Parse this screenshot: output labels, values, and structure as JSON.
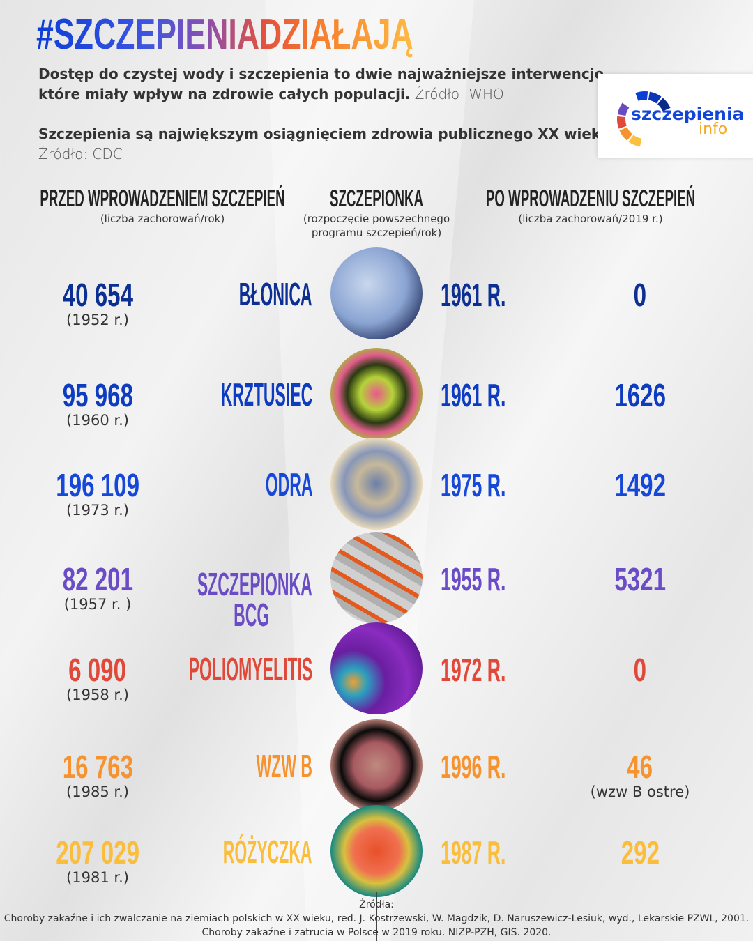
{
  "title": "#SZCZEPIENIADZIAŁAJĄ",
  "intro": {
    "line1": "Dostęp do czystej wody i szczepienia to dwie najważniejsze interwencje,",
    "line2": "które miały wpływ na zdrowie całych populacji.",
    "source1": "Źródło: WHO",
    "line3": "Szczepienia są największym osiągnięciem zdrowia publicznego XX wieku.",
    "source2": "Źródło: CDC"
  },
  "logo": {
    "word1": "szczepienia",
    "word2": "info",
    "colors": [
      "#0a3fd6",
      "#0b36b8",
      "#0a2a8a",
      "#6a4cc0",
      "#e04a3a",
      "#f7932e",
      "#fbc040"
    ]
  },
  "headers": {
    "before": {
      "title": "PRZED WPROWADZENIEM SZCZEPIEŃ",
      "sub": "(liczba zachorowań/rok)"
    },
    "vaccine": {
      "title": "SZCZEPIONKA",
      "sub1": "(rozpoczęcie powszechnego",
      "sub2": "programu szczepień/rok)"
    },
    "after": {
      "title": "PO WPROWADZENIU SZCZEPIEŃ",
      "sub": "(liczba zachorowań/2019 r.)"
    }
  },
  "rows": [
    {
      "before": "40 654",
      "before_year": "(1952 r.)",
      "disease": "BŁONICA",
      "disease2": "",
      "vaccine_year": "1961 R.",
      "after": "0",
      "after_note": "",
      "color": "#0b2f93",
      "image": "bacteria-blue"
    },
    {
      "before": "95 968",
      "before_year": "(1960 r.)",
      "disease": "KRZTUSIEC",
      "disease2": "",
      "vaccine_year": "1961 R.",
      "after": "1626",
      "after_note": "",
      "color": "#0e3cc0",
      "image": "bacteria-pink-green"
    },
    {
      "before": "196 109",
      "before_year": "(1973 r.)",
      "disease": "ODRA",
      "disease2": "",
      "vaccine_year": "1975 R.",
      "after": "1492",
      "after_note": "",
      "color": "#1547d8",
      "image": "virus-measles"
    },
    {
      "before": "82 201",
      "before_year": "(1957 r. )",
      "disease": "SZCZEPIONKA",
      "disease2": "BCG",
      "vaccine_year": "1955 R.",
      "after": "5321",
      "after_note": "",
      "color": "#6a4cc6",
      "image": "bacteria-tb"
    },
    {
      "before": "6 090",
      "before_year": "(1958 r.)",
      "disease": "POLIOMYELITIS",
      "disease2": "",
      "vaccine_year": "1972 R.",
      "after": "0",
      "after_note": "",
      "color": "#e0493a",
      "image": "virus-polio"
    },
    {
      "before": "16 763",
      "before_year": "(1985 r.)",
      "disease": "WZW B",
      "disease2": "",
      "vaccine_year": "1996 R.",
      "after": "46",
      "after_note": "(wzw B ostre)",
      "color": "#f7932e",
      "image": "virus-hepb"
    },
    {
      "before": "207 029",
      "before_year": "(1981 r.)",
      "disease": "RÓŻYCZKA",
      "disease2": "",
      "vaccine_year": "1987 R.",
      "after": "292",
      "after_note": "",
      "color": "#fbbd3c",
      "image": "virus-rubella"
    }
  ],
  "footer": {
    "label": "Źródła:",
    "source1": "Choroby zakaźne i ich zwalczanie na ziemiach polskich w XX wieku, red. J. Kostrzewski, W. Magdzik, D. Naruszewicz-Lesiuk, wyd., Lekarskie PZWL, 2001.",
    "source2": "Choroby zakaźne i zatrucia w Polsce w 2019 roku. NIZP-PZH, GIS. 2020."
  }
}
